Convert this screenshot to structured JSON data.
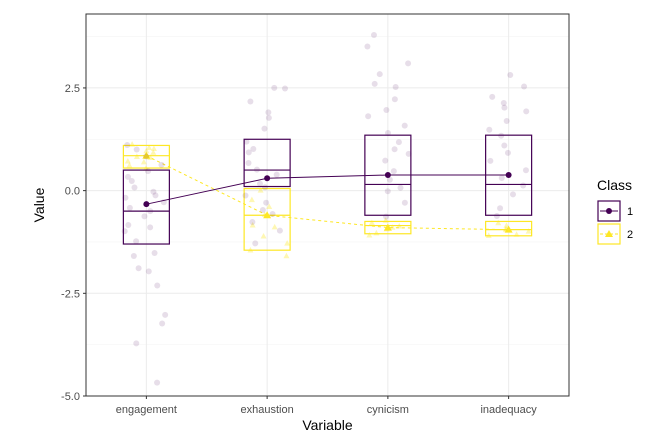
{
  "chart_data": {
    "type": "boxplot",
    "xlabel": "Variable",
    "ylabel": "Value",
    "categories": [
      "engagement",
      "exhaustion",
      "cynicism",
      "inadequacy"
    ],
    "ylim": [
      -5.0,
      4.3
    ],
    "yticks": [
      -5.0,
      -2.5,
      0.0,
      2.5
    ],
    "ytick_labels": [
      "-5.0",
      "-2.5",
      "0.0",
      "2.5"
    ],
    "grid": true,
    "legend": {
      "title": "Class",
      "position": "right"
    },
    "series": [
      {
        "name": "1",
        "color": "#440154",
        "marker": "circle",
        "linestyle": "solid",
        "means": [
          -0.33,
          0.3,
          0.38,
          0.38
        ],
        "boxes": [
          {
            "q1": -1.3,
            "median": -0.5,
            "q3": 0.5
          },
          {
            "q1": 0.1,
            "median": 0.5,
            "q3": 1.25
          },
          {
            "q1": -0.6,
            "median": 0.15,
            "q3": 1.35
          },
          {
            "q1": -0.6,
            "median": 0.15,
            "q3": 1.35
          }
        ],
        "points": [
          [
            -4.7,
            -3.7,
            -3.2,
            -3.0,
            -2.3,
            -2.0,
            -1.9,
            -1.6,
            -1.5,
            -1.2,
            -1.0,
            -0.9,
            -0.8,
            -0.6,
            -0.5,
            -0.4,
            -0.3,
            -0.2,
            -0.1,
            0.0,
            0.1,
            0.2,
            0.3,
            0.5,
            0.6,
            0.8,
            1.0,
            1.1
          ],
          [
            -1.3,
            -1.0,
            -0.8,
            -0.6,
            -0.5,
            -0.3,
            -0.1,
            0.1,
            0.2,
            0.4,
            0.5,
            0.7,
            0.9,
            1.0,
            1.2,
            1.5,
            1.8,
            1.9,
            2.2,
            2.5,
            2.5
          ],
          [
            -0.6,
            -0.3,
            0.0,
            0.1,
            0.3,
            0.5,
            0.7,
            0.9,
            1.0,
            1.2,
            1.4,
            1.6,
            1.8,
            2.0,
            2.2,
            2.5,
            2.6,
            2.8,
            3.1,
            3.5,
            3.8
          ],
          [
            -0.6,
            -0.4,
            -0.1,
            0.1,
            0.3,
            0.5,
            0.7,
            0.9,
            1.1,
            1.3,
            1.5,
            1.7,
            1.9,
            2.0,
            2.1,
            2.3,
            2.5,
            2.8
          ]
        ]
      },
      {
        "name": "2",
        "color": "#fde725",
        "marker": "triangle",
        "linestyle": "dashed",
        "means": [
          0.85,
          -0.6,
          -0.9,
          -0.95
        ],
        "boxes": [
          {
            "q1": 0.55,
            "median": 0.85,
            "q3": 1.1
          },
          {
            "q1": -1.45,
            "median": -0.6,
            "q3": 0.05
          },
          {
            "q1": -1.05,
            "median": -0.85,
            "q3": -0.75
          },
          {
            "q1": -1.1,
            "median": -0.95,
            "q3": -0.75
          }
        ],
        "points": [
          [
            0.55,
            0.6,
            0.7,
            0.75,
            0.8,
            0.85,
            0.9,
            0.95,
            1.0,
            1.05,
            1.1
          ],
          [
            -1.55,
            -1.45,
            -1.3,
            -1.1,
            -0.9,
            -0.8,
            -0.6,
            -0.4,
            -0.2,
            0.0
          ],
          [
            -1.05,
            -1.0,
            -0.95,
            -0.9,
            -0.85,
            -0.8,
            -0.75
          ],
          [
            -1.1,
            -1.05,
            -1.0,
            -0.95,
            -0.9,
            -0.85,
            -0.8
          ]
        ]
      }
    ]
  }
}
